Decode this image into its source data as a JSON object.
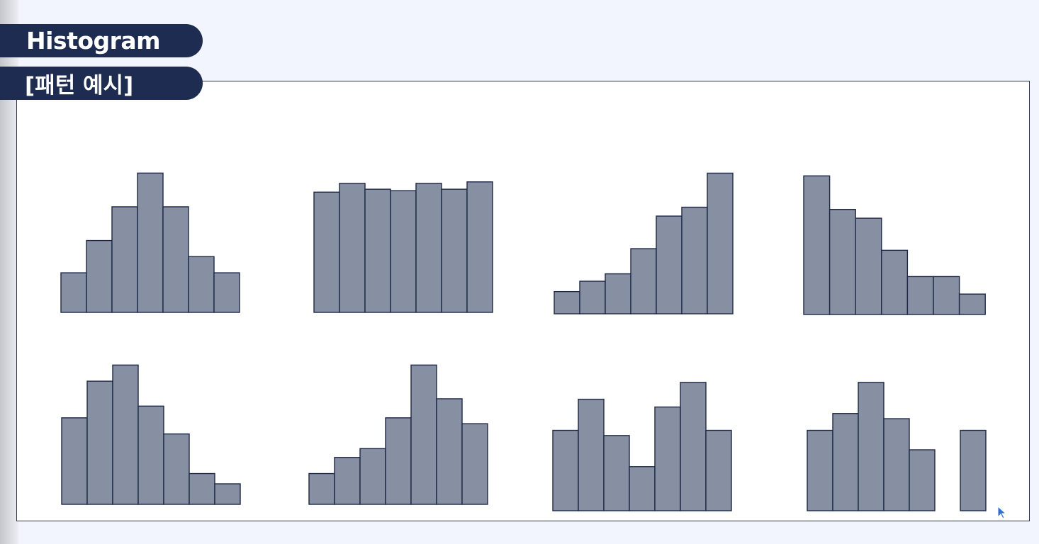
{
  "header": {
    "title": "Histogram",
    "subtitle": "[패턴 예시]"
  },
  "colors": {
    "bar_fill": "#878fa2",
    "bar_stroke": "#1d2848",
    "pill_bg": "#1d2c50",
    "panel_border": "#2b3450"
  },
  "cursor": {
    "icon": "mouse-pointer-icon"
  },
  "chart_data": [
    {
      "type": "bar",
      "pattern_index": 1,
      "values": [
        27,
        49,
        72,
        95,
        72,
        38,
        27
      ],
      "ylim": [
        0,
        100
      ]
    },
    {
      "type": "bar",
      "pattern_index": 2,
      "values": [
        82,
        88,
        84,
        83,
        88,
        84,
        89
      ],
      "ylim": [
        0,
        100
      ]
    },
    {
      "type": "bar",
      "pattern_index": 3,
      "values": [
        15,
        22,
        27,
        44,
        66,
        72,
        95
      ],
      "ylim": [
        0,
        100
      ]
    },
    {
      "type": "bar",
      "pattern_index": 4,
      "values": [
        95,
        72,
        66,
        44,
        26,
        26,
        14
      ],
      "ylim": [
        0,
        100
      ]
    },
    {
      "type": "bar",
      "pattern_index": 5,
      "values": [
        59,
        84,
        95,
        67,
        48,
        21,
        14
      ],
      "ylim": [
        0,
        100
      ]
    },
    {
      "type": "bar",
      "pattern_index": 6,
      "values": [
        21,
        32,
        38,
        59,
        95,
        72,
        55
      ],
      "ylim": [
        0,
        100
      ]
    },
    {
      "type": "bar",
      "pattern_index": 7,
      "values": [
        62,
        86,
        58,
        34,
        80,
        99,
        62
      ],
      "ylim": [
        0,
        100
      ]
    },
    {
      "type": "bar",
      "pattern_index": 8,
      "values": [
        62,
        75,
        99,
        71,
        47,
        null,
        62
      ],
      "ylim": [
        0,
        100
      ]
    }
  ]
}
